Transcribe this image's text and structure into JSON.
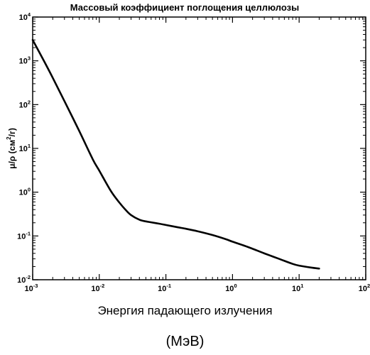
{
  "chart_data": {
    "type": "line",
    "title": "Массовый коэффициент поглощения целлюлозы",
    "ylabel": {
      "main": "μ/ρ (см",
      "sup": "2",
      "tail": "/г)"
    },
    "xlabel_line1": "Энергия падающего излучения",
    "xlabel_line2": "(МэВ)",
    "xscale": "log",
    "yscale": "log",
    "xlim": [
      0.001,
      100
    ],
    "ylim": [
      0.01,
      10000
    ],
    "xticks": [
      {
        "base": "10",
        "exp": "-3"
      },
      {
        "base": "10",
        "exp": "-2"
      },
      {
        "base": "10",
        "exp": "-1"
      },
      {
        "base": "10",
        "exp": "0"
      },
      {
        "base": "10",
        "exp": "1"
      },
      {
        "base": "10",
        "exp": "2"
      }
    ],
    "yticks": [
      {
        "base": "10",
        "exp": "-2"
      },
      {
        "base": "10",
        "exp": "-1"
      },
      {
        "base": "10",
        "exp": "0"
      },
      {
        "base": "10",
        "exp": "1"
      },
      {
        "base": "10",
        "exp": "2"
      },
      {
        "base": "10",
        "exp": "3"
      },
      {
        "base": "10",
        "exp": "4"
      }
    ],
    "grid": false,
    "series": [
      {
        "color": "#000000",
        "x": [
          0.001,
          0.0015,
          0.002,
          0.003,
          0.005,
          0.008,
          0.01,
          0.015,
          0.02,
          0.025,
          0.03,
          0.04,
          0.05,
          0.06,
          0.08,
          0.1,
          0.15,
          0.2,
          0.3,
          0.5,
          0.8,
          1,
          1.5,
          2,
          3,
          5,
          8,
          10,
          15,
          20
        ],
        "y": [
          3000,
          950,
          410,
          120,
          25,
          5.6,
          3.1,
          1.05,
          0.58,
          0.39,
          0.3,
          0.235,
          0.215,
          0.205,
          0.19,
          0.178,
          0.158,
          0.146,
          0.128,
          0.105,
          0.084,
          0.074,
          0.06,
          0.051,
          0.04,
          0.03,
          0.023,
          0.021,
          0.019,
          0.018
        ]
      }
    ]
  }
}
